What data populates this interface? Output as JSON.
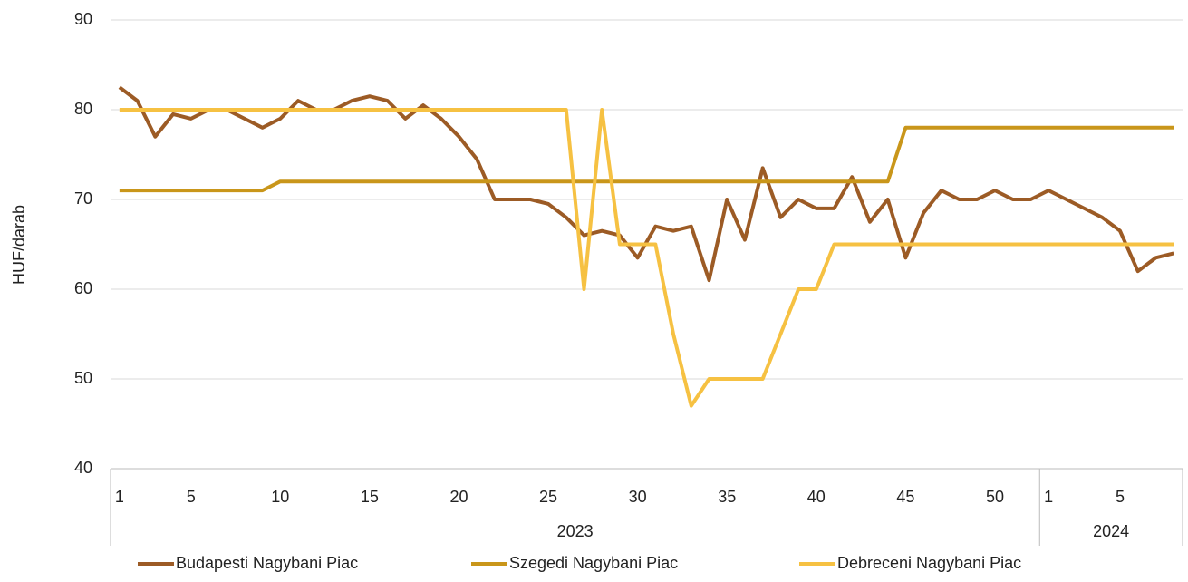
{
  "chart_data": {
    "type": "line",
    "y_label": "HUF/darab",
    "categories": [
      1,
      null,
      null,
      null,
      5,
      null,
      null,
      null,
      null,
      10,
      null,
      null,
      null,
      null,
      15,
      null,
      null,
      null,
      null,
      20,
      null,
      null,
      null,
      null,
      25,
      null,
      null,
      null,
      null,
      30,
      null,
      null,
      null,
      null,
      35,
      null,
      null,
      null,
      null,
      40,
      null,
      null,
      null,
      null,
      45,
      null,
      null,
      null,
      null,
      50,
      null,
      null,
      1,
      null,
      null,
      null,
      5,
      null,
      null,
      null
    ],
    "groups": [
      {
        "label": "2023",
        "count": 52
      },
      {
        "label": "2024",
        "count": 8
      }
    ],
    "series": [
      {
        "name": "Budapesti Nagybani Piac",
        "color": "#9c5b25",
        "values": [
          82.5,
          81,
          77,
          79.5,
          79,
          80,
          80,
          79,
          78,
          79,
          81,
          80,
          80,
          81,
          81.5,
          81,
          79,
          80.5,
          79,
          77,
          74.5,
          70,
          70,
          70,
          69.5,
          68,
          66,
          66.5,
          66,
          63.5,
          67,
          66.5,
          67,
          61,
          70,
          65.5,
          73.5,
          68,
          70,
          69,
          69,
          72.5,
          67.5,
          70,
          63.5,
          68.5,
          71,
          70,
          70,
          71,
          70,
          70,
          71,
          70,
          69,
          68,
          66.5,
          62,
          63.5,
          64
        ]
      },
      {
        "name": "Szegedi Nagybani Piac",
        "color": "#c9961a",
        "values": [
          71,
          71,
          71,
          71,
          71,
          71,
          71,
          71,
          71,
          72,
          72,
          72,
          72,
          72,
          72,
          72,
          72,
          72,
          72,
          72,
          72,
          72,
          72,
          72,
          72,
          72,
          72,
          72,
          72,
          72,
          72,
          72,
          72,
          72,
          72,
          72,
          72,
          72,
          72,
          72,
          72,
          72,
          72,
          72,
          78,
          78,
          78,
          78,
          78,
          78,
          78,
          78,
          78,
          78,
          78,
          78,
          78,
          78,
          78,
          78
        ]
      },
      {
        "name": "Debreceni Nagybani Piac",
        "color": "#f6c142",
        "values": [
          80,
          80,
          80,
          80,
          80,
          80,
          80,
          80,
          80,
          80,
          80,
          80,
          80,
          80,
          80,
          80,
          80,
          80,
          80,
          80,
          80,
          80,
          80,
          80,
          80,
          80,
          60,
          80,
          65,
          65,
          65,
          55,
          47,
          50,
          50,
          50,
          50,
          55,
          60,
          60,
          65,
          65,
          65,
          65,
          65,
          65,
          65,
          65,
          65,
          65,
          65,
          65,
          65,
          65,
          65,
          65,
          65,
          65,
          65,
          65
        ]
      }
    ],
    "ylim": [
      40,
      90
    ],
    "yticks": [
      40,
      50,
      60,
      70,
      80,
      90
    ],
    "grid": true
  }
}
